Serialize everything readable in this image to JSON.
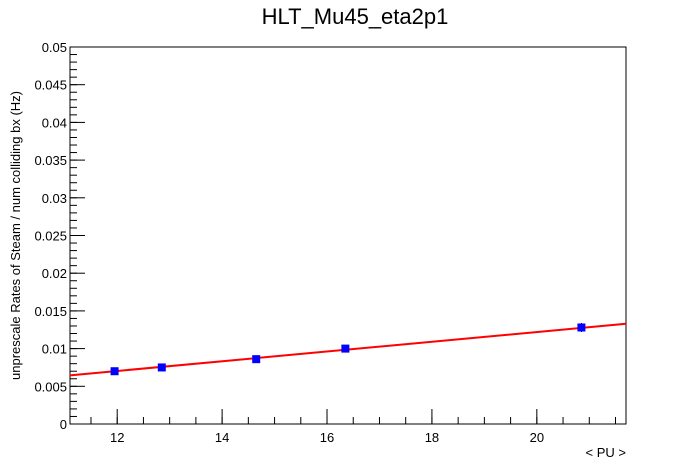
{
  "chart_data": {
    "type": "scatter",
    "title": "HLT_Mu45_eta2p1",
    "xlabel": "< PU >",
    "ylabel": "unprescale Rates of Steam / num colliding bx (Hz)",
    "xlim": [
      11.1,
      21.7
    ],
    "ylim": [
      0,
      0.05
    ],
    "x_ticks": [
      12,
      14,
      16,
      18,
      20
    ],
    "x_tick_labels": [
      "12",
      "14",
      "16",
      "18",
      "20"
    ],
    "y_ticks": [
      0,
      0.005,
      0.01,
      0.015,
      0.02,
      0.025,
      0.03,
      0.035,
      0.04,
      0.045,
      0.05
    ],
    "y_tick_labels": [
      "0",
      "0.005",
      "0.01",
      "0.015",
      "0.02",
      "0.025",
      "0.03",
      "0.035",
      "0.04",
      "0.045",
      "0.05"
    ],
    "grid": false,
    "series": [
      {
        "marker_color": "#0000ff",
        "x": [
          11.95,
          12.85,
          14.65,
          16.35,
          20.85
        ],
        "y": [
          0.007,
          0.0075,
          0.0086,
          0.01,
          0.0128
        ],
        "y_err": [
          0.0005,
          0.0004,
          0.0004,
          0.0004,
          0.0006
        ]
      }
    ],
    "fit": {
      "color": "#ff0000",
      "slope": 0.000645,
      "intercept": -0.000707
    }
  }
}
